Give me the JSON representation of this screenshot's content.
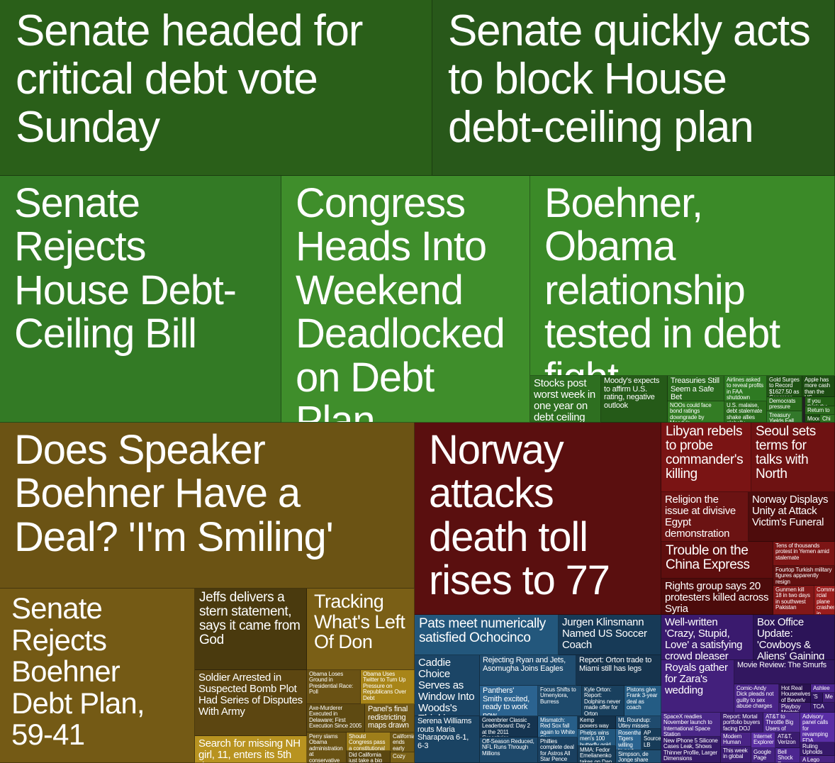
{
  "colors": {
    "world_green": "#2d6a1d",
    "business_green": "#3b8a2a",
    "us_olive": "#6b5416",
    "intl_red": "#5a1010",
    "sports_blue": "#1d4566",
    "entertainment_purple": "#3b1a6b"
  },
  "tiles": {
    "t1": "Senate headed for critical debt vote Sunday",
    "t2": "Senate quickly acts to block House debt-ceiling plan",
    "t3": "Senate Rejects House Debt-Ceiling Bill",
    "t4": "Congress Heads Into Weekend Deadlocked on Debt Plan",
    "t5": "Boehner, Obama relationship tested in debt fight",
    "t6": "Stocks post worst week in one year on debt ceiling fears",
    "t7": "Moody's expects to affirm U.S. rating, negative outlook",
    "t8": "Treasuries Still Seem a Safe Bet",
    "t9": "NOOs could face bond ratings downgrade by Moody's",
    "t10": "Airlines asked to reveal profits in FAA shutdown",
    "t11": "U.S. malaise, debt stalemate shake allies globally",
    "t12": "Gold Surges to Record $1627.50 as Congress 'Plays Chicken'",
    "t13": "Democrats pressure airlines to give back",
    "t14": "Treasury Yields Fall to 2011 Lows Amid",
    "t15": "Apple has more cash than the US Treasury",
    "t16": "If you think the",
    "t17": "Return to",
    "t18": "Mood",
    "t19": "Chi",
    "u1": "Does Speaker Boehner Have a Deal? 'I'm Smiling'",
    "u2": "Senate Rejects Boehner Debt Plan, 59-41",
    "u3": "Jeffs delivers a stern statement, says it came from God",
    "u4": "Tracking What's Left Of Don",
    "u5": "Soldier Arrested in Suspected Bomb Plot Had Series of Disputes With Army",
    "u6": "Obama Loses Ground in Presidential Race: Poll",
    "u7": "Obama Uses Twitter to Turn Up Pressure on Republicans Over Debt",
    "u8": "Axe-Murderer Executed in Delaware; First Execution Since 2005",
    "u9": "Panel's final redistricting maps drawn",
    "u10": "Search for missing NH girl, 11, enters its 5th day",
    "u11": "Perry slams Obama administration at conservative summit",
    "u12": "Should Congress pass a constitutional amendment requiring",
    "u13": "California ends early presidential",
    "u14": "Did California just take a big step toward",
    "u15": "Cozy",
    "w1": "Norway attacks death toll rises to 77",
    "w2": "Libyan rebels to probe commander's killing",
    "w3": "Seoul sets terms for talks with North",
    "w4": "Religion the issue at divisive Egypt demonstration",
    "w5": "Norway Displays Unity at Attack Victim's Funeral",
    "w6": "Trouble on the China Express",
    "w7": "Tens of thousands protest in Yemen amid stalemate",
    "w8": "Fourtop Turkish military figures apparently resign",
    "w9": "Rights group says 20 protesters killed across Syria",
    "w10": "Gunmen kill 18 in two days in southwest Pakistan",
    "w11": "Comme rcial plane crashes in",
    "s1": "Pats meet numerically satisfied Ochocinco",
    "s2": "Jurgen Klinsmann Named US Soccer Coach",
    "s3": "Caddie Choice Serves as Window Into Woods's Thinking",
    "s4": "Rejecting Ryan and Jets, Asomugha Joins Eagles",
    "s5": "Report: Orton trade to Miami still has legs",
    "s6": "Panthers' Smith excited, ready to work now",
    "s7": "Focus Shifts to Umenyiora, Burress",
    "s8": "Kyle Orton: Report: Dolphins never made offer for Orton",
    "s9": "Pistons give Frank 3-year deal as coach",
    "s10": "Serena Williams routs Maria Sharapova 6-1, 6-3",
    "s11": "Greenbrier Classic Leaderboard: Day 2 at the 2011 Greenbrier",
    "s12": "Mismatch: Red Sox fall again to White Sox",
    "s13": "Kemp powers way to milestone in Dodgers victory",
    "s14": "ML Roundup: Utley misses cycle by a double, Phillies win",
    "s15": "Off-Season Reduced, NFL Runs Through Millions",
    "s16": "Phillies complete deal for Astros All Star Pence",
    "s17": "Phelps wins men's 100 butterfly gold at world",
    "s18": "Rosenthal: Tigers willing to part with",
    "s19": "AP Source: LB",
    "s20": "Simpson, de Jonge share lead",
    "s21": "MMA: Fedor Emelianenko takes on Dan Henderson",
    "e1": "Well-written 'Crazy, Stupid, Love' a satisfying crowd pleaser",
    "e2": "Box Office Update: 'Cowboys & Aliens' Gaining Strength",
    "e3": "Royals gather for Zara's wedding",
    "e4": "Movie Review: The Smurfs",
    "e5": "Comic-Andy Dick pleads not guilty to sex abuse charges",
    "e6": "Hot Real Housewives of Beverly Hills",
    "e7": "Ashlee",
    "e8": "Playboy Models",
    "e9": "TCA",
    "e10": "'S",
    "e11": "Me",
    "e12": "SpaceX readies November launch to International Space Station",
    "e13": "Report: Mortal portfolio buyers facing DOJ scrutiny",
    "e14": "AT&T to Throttle Big Users of Unlimited Data",
    "e15": "Advisory panel calls for revamping FDA approval process for medical devices",
    "e16": "New iPhone 5 Silicone Cases Leak, Shows Thinner Profile, Larger Dimensions",
    "e17": "Modern Human",
    "e18": "Internet Explorer",
    "e19": "AT&T, Verizon",
    "e20": "This week in global",
    "e21": "Google Page",
    "e22": "Bell Shock Recommen",
    "e23": "Ruling Upholds Gene Patent in",
    "e24": "A Lego"
  }
}
